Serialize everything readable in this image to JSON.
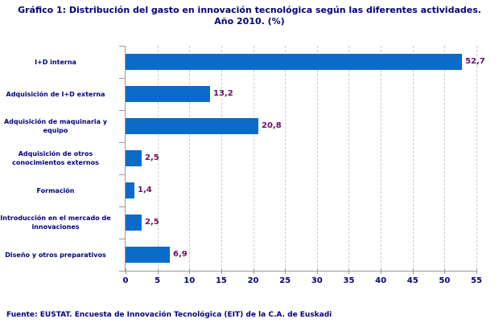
{
  "title": {
    "line1": "Gráfico 1: Distribución del gasto en innovación tecnológica según las diferentes actividades.",
    "line2": "Año 2010. (%)"
  },
  "footer": "Fuente: EUSTAT. Encuesta de Innovación Tecnológica (EIT) de la C.A. de Euskadi",
  "chart_data": {
    "type": "bar",
    "orientation": "horizontal",
    "title": "Gráfico 1: Distribución del gasto en innovación tecnológica según las diferentes actividades. Año 2010. (%)",
    "categories": [
      "I+D interna",
      "Adquisición de I+D externa",
      "Adquisición de maquinaria y equipo",
      "Adquisición de otros conocimientos externos",
      "Formación",
      "Introducción en el mercado de innovaciones",
      "Diseño y otros preparativos"
    ],
    "category_lines": [
      [
        "I+D interna"
      ],
      [
        "Adquisición de I+D externa"
      ],
      [
        "Adquisición de maquinaria y",
        "equipo"
      ],
      [
        "Adquisición de otros",
        "conocimientos externos"
      ],
      [
        "Formación"
      ],
      [
        "Introducción en el mercado de",
        "innovaciones"
      ],
      [
        "Diseño y otros preparativos"
      ]
    ],
    "values": [
      52.7,
      13.2,
      20.8,
      2.5,
      1.4,
      2.5,
      6.9
    ],
    "value_labels": [
      "52,7",
      "13,2",
      "20,8",
      "2,5",
      "1,4",
      "2,5",
      "6,9"
    ],
    "xlim": [
      0,
      55
    ],
    "x_ticks": [
      0,
      5,
      10,
      15,
      20,
      25,
      30,
      35,
      40,
      45,
      50,
      55
    ],
    "grid": "vertical-dashed",
    "legend": "none",
    "colors": {
      "bar": "#0a6bc8",
      "value_label": "#6a0d62",
      "category_label": "#00007d",
      "tick_label": "#00007d",
      "title": "#00007d",
      "axis": "#9a9a9a",
      "gridline": "#c9c9c9",
      "background": "#ffffff"
    }
  }
}
